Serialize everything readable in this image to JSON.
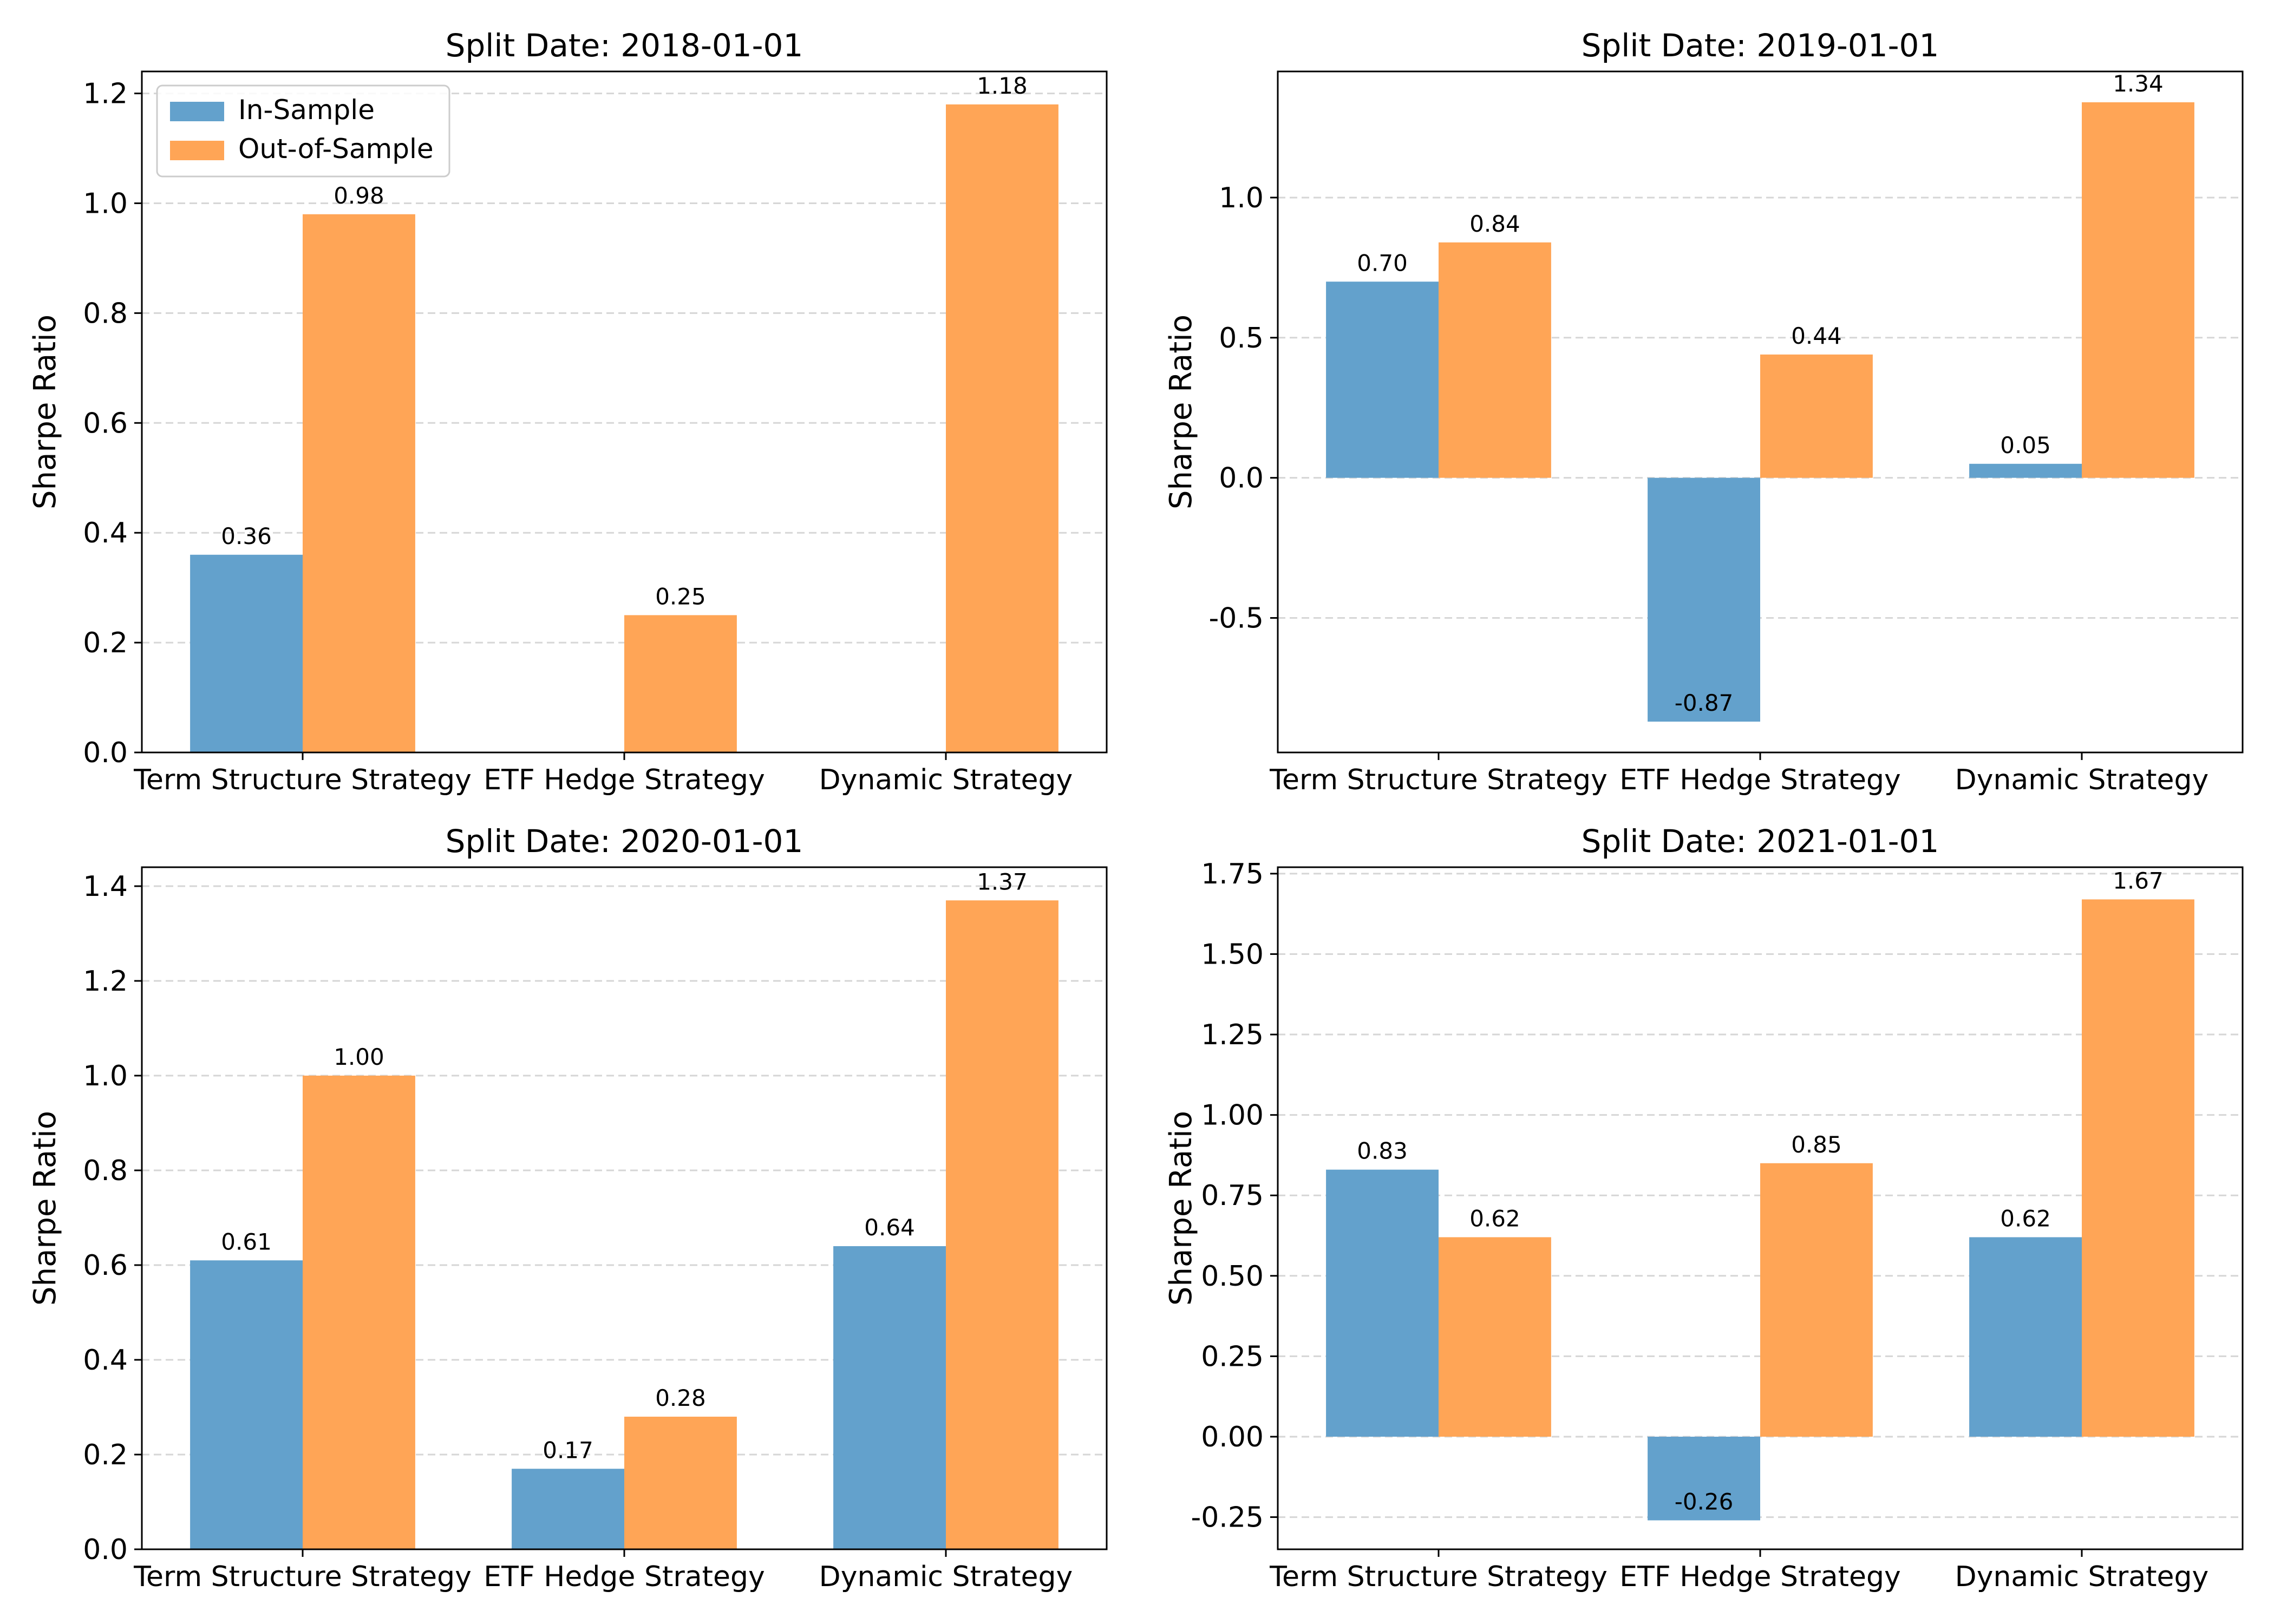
{
  "chart_data": [
    {
      "type": "bar",
      "title": "Split Date: 2018-01-01",
      "xlabel": "",
      "ylabel": "Sharpe Ratio",
      "categories": [
        "Term Structure Strategy",
        "ETF Hedge Strategy",
        "Dynamic Strategy"
      ],
      "series": [
        {
          "name": "In-Sample",
          "values": [
            0.36,
            null,
            null
          ],
          "labels": [
            "0.36",
            "",
            ""
          ]
        },
        {
          "name": "Out-of-Sample",
          "values": [
            0.98,
            0.25,
            1.18
          ],
          "labels": [
            "0.98",
            "0.25",
            "1.18"
          ]
        }
      ],
      "ylim": [
        0,
        1.24
      ],
      "yticks": [
        0.0,
        0.2,
        0.4,
        0.6,
        0.8,
        1.0,
        1.2
      ],
      "ytick_labels": [
        "0.0",
        "0.2",
        "0.4",
        "0.6",
        "0.8",
        "1.0",
        "1.2"
      ],
      "grid": "y",
      "legend": "top-left"
    },
    {
      "type": "bar",
      "title": "Split Date: 2019-01-01",
      "xlabel": "",
      "ylabel": "Sharpe Ratio",
      "categories": [
        "Term Structure Strategy",
        "ETF Hedge Strategy",
        "Dynamic Strategy"
      ],
      "series": [
        {
          "name": "In-Sample",
          "values": [
            0.7,
            -0.87,
            0.05
          ],
          "labels": [
            "0.70",
            "-0.87",
            "0.05"
          ]
        },
        {
          "name": "Out-of-Sample",
          "values": [
            0.84,
            0.44,
            1.34
          ],
          "labels": [
            "0.84",
            "0.44",
            "1.34"
          ]
        }
      ],
      "ylim": [
        -0.98,
        1.45
      ],
      "yticks": [
        -0.5,
        0.0,
        0.5,
        1.0
      ],
      "ytick_labels": [
        "-0.5",
        "0.0",
        "0.5",
        "1.0"
      ],
      "grid": "y"
    },
    {
      "type": "bar",
      "title": "Split Date: 2020-01-01",
      "xlabel": "",
      "ylabel": "Sharpe Ratio",
      "categories": [
        "Term Structure Strategy",
        "ETF Hedge Strategy",
        "Dynamic Strategy"
      ],
      "series": [
        {
          "name": "In-Sample",
          "values": [
            0.61,
            0.17,
            0.64
          ],
          "labels": [
            "0.61",
            "0.17",
            "0.64"
          ]
        },
        {
          "name": "Out-of-Sample",
          "values": [
            1.0,
            0.28,
            1.37
          ],
          "labels": [
            "1.00",
            "0.28",
            "1.37"
          ]
        }
      ],
      "ylim": [
        0,
        1.44
      ],
      "yticks": [
        0.0,
        0.2,
        0.4,
        0.6,
        0.8,
        1.0,
        1.2,
        1.4
      ],
      "ytick_labels": [
        "0.0",
        "0.2",
        "0.4",
        "0.6",
        "0.8",
        "1.0",
        "1.2",
        "1.4"
      ],
      "grid": "y"
    },
    {
      "type": "bar",
      "title": "Split Date: 2021-01-01",
      "xlabel": "",
      "ylabel": "Sharpe Ratio",
      "categories": [
        "Term Structure Strategy",
        "ETF Hedge Strategy",
        "Dynamic Strategy"
      ],
      "series": [
        {
          "name": "In-Sample",
          "values": [
            0.83,
            -0.26,
            0.62
          ],
          "labels": [
            "0.83",
            "-0.26",
            "0.62"
          ]
        },
        {
          "name": "Out-of-Sample",
          "values": [
            0.62,
            0.85,
            1.67
          ],
          "labels": [
            "0.62",
            "0.85",
            "1.67"
          ]
        }
      ],
      "ylim": [
        -0.35,
        1.77
      ],
      "yticks": [
        -0.25,
        0.0,
        0.25,
        0.5,
        0.75,
        1.0,
        1.25,
        1.5,
        1.75
      ],
      "ytick_labels": [
        "-0.25",
        "0.00",
        "0.25",
        "0.50",
        "0.75",
        "1.00",
        "1.25",
        "1.50",
        "1.75"
      ],
      "grid": "y"
    }
  ],
  "colors": {
    "in_sample": "#63a1cc",
    "out_of_sample": "#ffa556",
    "grid": "#d6d6d6",
    "axis": "#000000"
  }
}
